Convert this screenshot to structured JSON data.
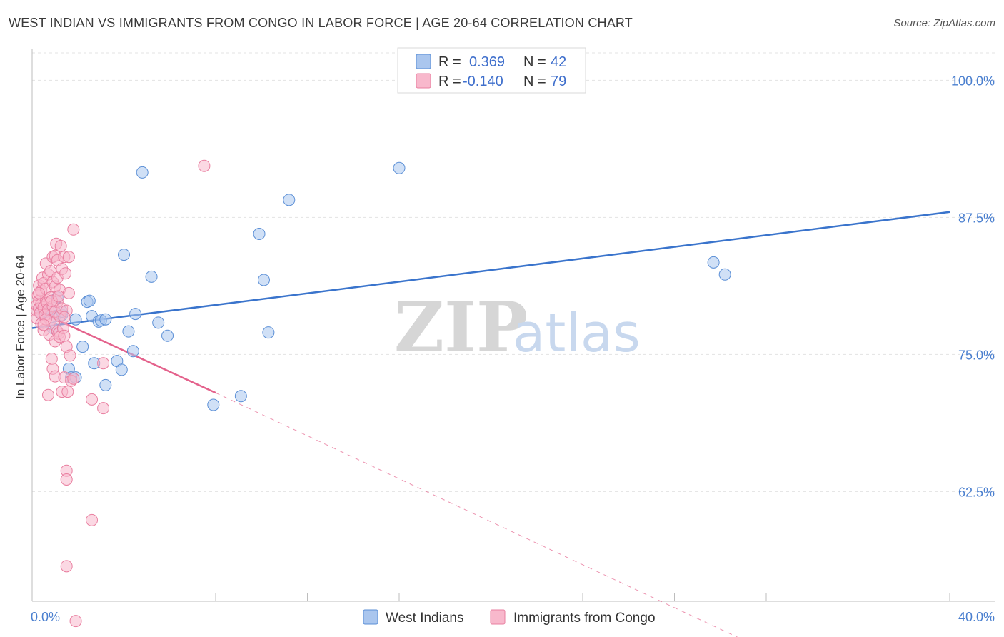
{
  "header": {
    "title": "WEST INDIAN VS IMMIGRANTS FROM CONGO IN LABOR FORCE | AGE 20-64 CORRELATION CHART",
    "source": "Source: ZipAtlas.com"
  },
  "watermark": {
    "zip": "ZIP",
    "atlas": "atlas"
  },
  "legend": {
    "west": {
      "r_label": "R =",
      "r_value": "0.369",
      "n_label": "N =",
      "n_value": "42"
    },
    "congo": {
      "r_label": "R =",
      "r_value": "-0.140",
      "n_label": "N =",
      "n_value": "79"
    }
  },
  "colors": {
    "west_fill": "#aac6ee",
    "west_stroke": "#5b8fd6",
    "west_line": "#3a74cc",
    "congo_fill": "#f8b8cc",
    "congo_stroke": "#e97fa0",
    "congo_line": "#e4628c",
    "grid": "#e3e3e3",
    "tick_text": "#4a7fcf"
  },
  "chart_data": {
    "type": "scatter",
    "title": "WEST INDIAN VS IMMIGRANTS FROM CONGO IN LABOR FORCE | AGE 20-64 CORRELATION CHART",
    "xlabel": "",
    "ylabel": "In Labor Force | Age 20-64",
    "xlim": [
      0,
      40
    ],
    "ylim": [
      52.5,
      102.5
    ],
    "x_tick_labels": [
      "0.0%",
      "40.0%"
    ],
    "y_ticks": [
      100,
      87.5,
      75,
      62.5
    ],
    "y_tick_labels": [
      "100.0%",
      "87.5%",
      "75.0%",
      "62.5%"
    ],
    "legend_labels": [
      "West Indians",
      "Immigrants from Congo"
    ],
    "series": [
      {
        "name": "West Indians",
        "r": 0.369,
        "n": 42,
        "trend": {
          "x": [
            0,
            40
          ],
          "y": [
            77.4,
            88.0
          ],
          "dashed_extension": false
        },
        "points": [
          [
            0.3,
            79.2
          ],
          [
            0.4,
            78.7
          ],
          [
            0.5,
            79.0
          ],
          [
            0.6,
            78.9
          ],
          [
            0.8,
            79.1
          ],
          [
            0.9,
            77.4
          ],
          [
            1.0,
            78.5
          ],
          [
            1.1,
            80.2
          ],
          [
            1.3,
            78.6
          ],
          [
            1.3,
            78.9
          ],
          [
            1.6,
            73.7
          ],
          [
            1.7,
            72.9
          ],
          [
            1.9,
            72.9
          ],
          [
            1.9,
            78.2
          ],
          [
            2.2,
            75.7
          ],
          [
            2.4,
            79.8
          ],
          [
            2.5,
            79.9
          ],
          [
            2.6,
            78.5
          ],
          [
            2.7,
            74.2
          ],
          [
            2.9,
            78.0
          ],
          [
            3.0,
            78.1
          ],
          [
            3.2,
            72.2
          ],
          [
            3.2,
            78.2
          ],
          [
            3.7,
            74.4
          ],
          [
            3.9,
            73.6
          ],
          [
            4.0,
            84.1
          ],
          [
            4.2,
            77.1
          ],
          [
            4.4,
            75.3
          ],
          [
            4.5,
            78.7
          ],
          [
            4.8,
            91.6
          ],
          [
            5.2,
            82.1
          ],
          [
            5.5,
            77.9
          ],
          [
            5.9,
            76.7
          ],
          [
            7.9,
            70.4
          ],
          [
            9.1,
            71.2
          ],
          [
            9.9,
            86.0
          ],
          [
            10.1,
            81.8
          ],
          [
            10.3,
            77.0
          ],
          [
            11.2,
            89.1
          ],
          [
            16.0,
            92.0
          ],
          [
            29.7,
            83.4
          ],
          [
            30.2,
            82.3
          ]
        ]
      },
      {
        "name": "Immigrants from Congo",
        "r": -0.14,
        "n": 79,
        "trend": {
          "x": [
            0,
            8
          ],
          "y": [
            79.2,
            71.5
          ],
          "dashed_to": [
            32,
            48.0
          ]
        },
        "points": [
          [
            0.2,
            79.0
          ],
          [
            0.2,
            79.5
          ],
          [
            0.2,
            78.3
          ],
          [
            0.25,
            80.4
          ],
          [
            0.3,
            81.3
          ],
          [
            0.3,
            79.9
          ],
          [
            0.3,
            79.2
          ],
          [
            0.35,
            78.8
          ],
          [
            0.4,
            79.6
          ],
          [
            0.4,
            80.8
          ],
          [
            0.4,
            77.8
          ],
          [
            0.45,
            82.0
          ],
          [
            0.5,
            81.5
          ],
          [
            0.5,
            79.3
          ],
          [
            0.5,
            77.2
          ],
          [
            0.55,
            78.6
          ],
          [
            0.6,
            80.0
          ],
          [
            0.6,
            83.3
          ],
          [
            0.6,
            81.0
          ],
          [
            0.65,
            79.7
          ],
          [
            0.7,
            82.3
          ],
          [
            0.7,
            79.1
          ],
          [
            0.7,
            71.3
          ],
          [
            0.75,
            76.8
          ],
          [
            0.8,
            82.6
          ],
          [
            0.8,
            80.2
          ],
          [
            0.8,
            78.1
          ],
          [
            0.85,
            74.6
          ],
          [
            0.9,
            83.9
          ],
          [
            0.9,
            81.6
          ],
          [
            0.9,
            79.4
          ],
          [
            0.9,
            73.7
          ],
          [
            0.95,
            77.9
          ],
          [
            1.0,
            84.0
          ],
          [
            1.0,
            81.2
          ],
          [
            1.0,
            78.9
          ],
          [
            1.0,
            76.2
          ],
          [
            1.0,
            73.0
          ],
          [
            1.05,
            85.1
          ],
          [
            1.1,
            83.6
          ],
          [
            1.1,
            82.0
          ],
          [
            1.1,
            79.8
          ],
          [
            1.1,
            77.1
          ],
          [
            1.15,
            76.9
          ],
          [
            1.2,
            80.9
          ],
          [
            1.2,
            78.5
          ],
          [
            1.2,
            76.6
          ],
          [
            1.25,
            84.9
          ],
          [
            1.3,
            82.8
          ],
          [
            1.3,
            79.2
          ],
          [
            1.3,
            71.6
          ],
          [
            1.35,
            77.4
          ],
          [
            1.4,
            83.9
          ],
          [
            1.4,
            76.7
          ],
          [
            1.4,
            72.9
          ],
          [
            1.45,
            82.4
          ],
          [
            1.5,
            79.0
          ],
          [
            1.5,
            75.7
          ],
          [
            1.55,
            71.6
          ],
          [
            1.6,
            83.9
          ],
          [
            1.6,
            80.6
          ],
          [
            1.65,
            74.9
          ],
          [
            1.7,
            72.6
          ],
          [
            1.8,
            72.8
          ],
          [
            1.4,
            78.4
          ],
          [
            0.6,
            78.2
          ],
          [
            0.85,
            79.9
          ],
          [
            1.15,
            80.3
          ],
          [
            0.3,
            80.6
          ],
          [
            0.5,
            77.7
          ],
          [
            1.5,
            64.4
          ],
          [
            1.5,
            63.6
          ],
          [
            1.8,
            86.4
          ],
          [
            2.6,
            70.9
          ],
          [
            3.1,
            74.2
          ],
          [
            3.1,
            70.1
          ],
          [
            2.6,
            59.9
          ],
          [
            1.5,
            55.7
          ],
          [
            1.9,
            50.7
          ],
          [
            7.5,
            92.2
          ]
        ]
      }
    ]
  }
}
